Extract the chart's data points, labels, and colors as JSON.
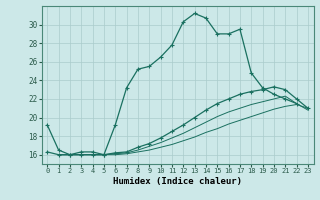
{
  "title": "",
  "xlabel": "Humidex (Indice chaleur)",
  "ylabel": "",
  "bg_color": "#cce8e8",
  "grid_color": "#aacccc",
  "line_color": "#1a7060",
  "xlim": [
    -0.5,
    23.5
  ],
  "ylim": [
    15.0,
    32.0
  ],
  "yticks": [
    16,
    18,
    20,
    22,
    24,
    26,
    28,
    30
  ],
  "xticks": [
    0,
    1,
    2,
    3,
    4,
    5,
    6,
    7,
    8,
    9,
    10,
    11,
    12,
    13,
    14,
    15,
    16,
    17,
    18,
    19,
    20,
    21,
    22,
    23
  ],
  "curve1_x": [
    0,
    1,
    2,
    3,
    4,
    5,
    6,
    7,
    8,
    9,
    10,
    11,
    12,
    13,
    14,
    15,
    16,
    17,
    18,
    19,
    20,
    21,
    22
  ],
  "curve1_y": [
    19.2,
    16.5,
    16.0,
    16.3,
    16.3,
    16.0,
    19.2,
    23.2,
    25.2,
    25.5,
    26.5,
    27.8,
    30.3,
    31.2,
    30.7,
    29.0,
    29.0,
    29.5,
    24.8,
    23.2,
    22.5,
    22.0,
    21.5
  ],
  "curve2_x": [
    0,
    1,
    2,
    3,
    4,
    5,
    6,
    7,
    8,
    9,
    10,
    11,
    12,
    13,
    14,
    15,
    16,
    17,
    18,
    19,
    20,
    21,
    22,
    23
  ],
  "curve2_y": [
    16.3,
    16.0,
    16.0,
    16.0,
    16.0,
    16.0,
    16.2,
    16.3,
    16.8,
    17.2,
    17.8,
    18.5,
    19.2,
    20.0,
    20.8,
    21.5,
    22.0,
    22.5,
    22.8,
    23.0,
    23.3,
    23.0,
    22.0,
    21.0
  ],
  "curve3_x": [
    1,
    2,
    3,
    4,
    5,
    6,
    7,
    8,
    9,
    10,
    11,
    12,
    13,
    14,
    15,
    16,
    17,
    18,
    19,
    20,
    21,
    22,
    23
  ],
  "curve3_y": [
    16.0,
    16.0,
    16.0,
    16.0,
    16.0,
    16.1,
    16.2,
    16.5,
    16.9,
    17.3,
    17.8,
    18.3,
    18.9,
    19.5,
    20.1,
    20.6,
    21.0,
    21.4,
    21.7,
    22.0,
    22.3,
    21.5,
    20.8
  ],
  "curve4_x": [
    1,
    2,
    3,
    4,
    5,
    6,
    7,
    8,
    9,
    10,
    11,
    12,
    13,
    14,
    15,
    16,
    17,
    18,
    19,
    20,
    21,
    22,
    23
  ],
  "curve4_y": [
    16.0,
    16.0,
    16.0,
    16.0,
    16.0,
    16.0,
    16.1,
    16.3,
    16.5,
    16.8,
    17.1,
    17.5,
    17.9,
    18.4,
    18.8,
    19.3,
    19.7,
    20.1,
    20.5,
    20.9,
    21.2,
    21.4,
    21.0
  ]
}
